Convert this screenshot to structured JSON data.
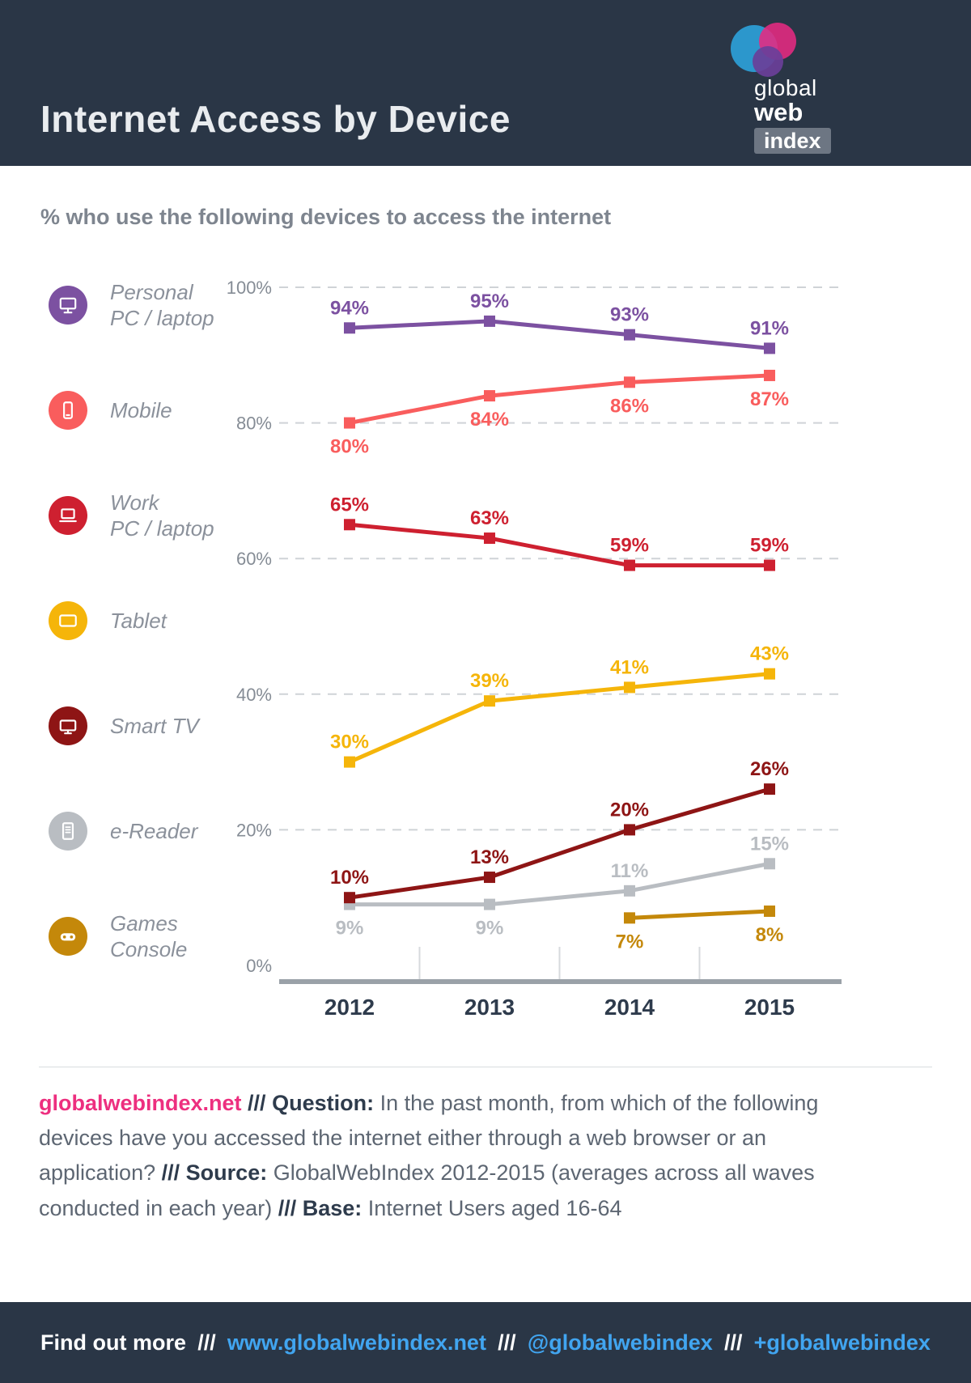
{
  "header": {
    "title": "Internet Access by Device",
    "logo": {
      "line1": "global",
      "line2": "web",
      "line3": "index"
    }
  },
  "subtitle": "% who use the following devices to access the internet",
  "legend": {
    "items": [
      {
        "label": "Personal\nPC / laptop",
        "icon": "monitor-icon"
      },
      {
        "label": "Mobile",
        "icon": "smartphone-icon"
      },
      {
        "label": "Work\nPC / laptop",
        "icon": "laptop-icon"
      },
      {
        "label": "Tablet",
        "icon": "tablet-icon"
      },
      {
        "label": "Smart TV",
        "icon": "tv-icon"
      },
      {
        "label": "e-Reader",
        "icon": "ereader-icon"
      },
      {
        "label": "Games\nConsole",
        "icon": "gamepad-icon"
      }
    ]
  },
  "chart_data": {
    "type": "line",
    "title": "% who use the following devices to access the internet",
    "categories": [
      "2012",
      "2013",
      "2014",
      "2015"
    ],
    "ylim": [
      0,
      100
    ],
    "ytick_step": 20,
    "yticks": [
      "0%",
      "20%",
      "40%",
      "60%",
      "80%",
      "100%"
    ],
    "grid": "dashed-horizontal",
    "legend_position": "left",
    "marker": "square",
    "series": [
      {
        "name": "Personal PC / laptop",
        "color": "#7c51a1",
        "values": [
          94,
          95,
          93,
          91
        ],
        "label_pos": [
          "above",
          "above",
          "above",
          "above"
        ]
      },
      {
        "name": "Mobile",
        "color": "#f95d5d",
        "values": [
          80,
          84,
          86,
          87
        ],
        "label_pos": [
          "below",
          "below",
          "below",
          "below"
        ]
      },
      {
        "name": "Work PC / laptop",
        "color": "#ce2030",
        "values": [
          65,
          63,
          59,
          59
        ],
        "label_pos": [
          "above",
          "above",
          "above",
          "above"
        ]
      },
      {
        "name": "Tablet",
        "color": "#f5b50a",
        "values": [
          30,
          39,
          41,
          43
        ],
        "label_pos": [
          "above",
          "above",
          "above",
          "above"
        ]
      },
      {
        "name": "Smart TV",
        "color": "#8e1515",
        "values": [
          10,
          13,
          20,
          26
        ],
        "label_pos": [
          "above",
          "above",
          "above",
          "above"
        ]
      },
      {
        "name": "e-Reader",
        "color": "#b9bdc2",
        "values": [
          9,
          9,
          11,
          15
        ],
        "label_pos": [
          "below",
          "below",
          "above",
          "above"
        ]
      },
      {
        "name": "Games Console",
        "color": "#c4880a",
        "values": [
          null,
          null,
          7,
          8
        ],
        "label_pos": [
          null,
          null,
          "below",
          "below"
        ]
      }
    ]
  },
  "footer": {
    "site": "globalwebindex.net",
    "sep": "///",
    "question_label": "Question:",
    "question_text": "In the past month, from which of the following devices have you accessed the internet either through a web browser or an application?",
    "source_label": "Source:",
    "source_text": "GlobalWebIndex 2012-2015 (averages across all waves conducted in each year)",
    "base_label": "Base:",
    "base_text": "Internet Users aged 16-64"
  },
  "bottom_bar": {
    "find_out_more": "Find out more",
    "sep": "///",
    "links": [
      "www.globalwebindex.net",
      "@globalwebindex",
      "+globalwebindex"
    ],
    "link_color": "#41a5f0"
  }
}
